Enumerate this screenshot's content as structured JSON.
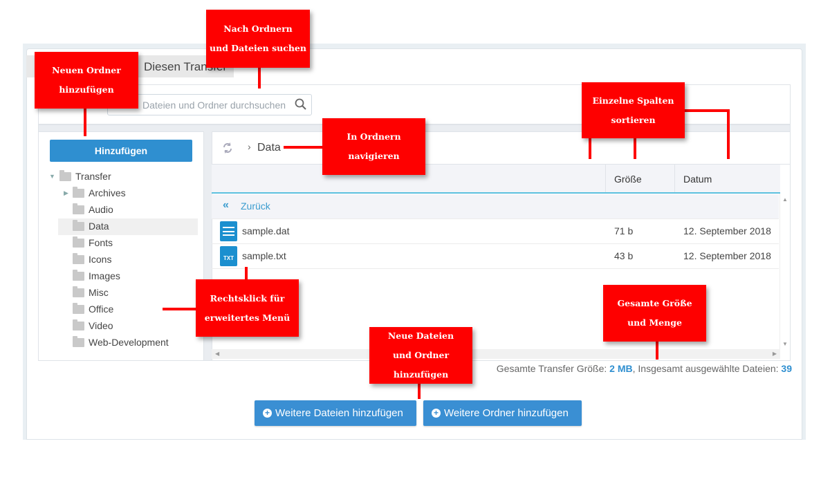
{
  "tab": {
    "label": "Diesen Transfer"
  },
  "search": {
    "placeholder": "Dateien und Ordner durchsuchen"
  },
  "sidebar": {
    "add_label": "Hinzufügen",
    "tree": [
      {
        "label": "Transfer",
        "level": 0,
        "expanded": true
      },
      {
        "label": "Archives",
        "level": 1,
        "collapsed": true
      },
      {
        "label": "Audio",
        "level": 1
      },
      {
        "label": "Data",
        "level": 1,
        "selected": true
      },
      {
        "label": "Fonts",
        "level": 1
      },
      {
        "label": "Icons",
        "level": 1
      },
      {
        "label": "Images",
        "level": 1
      },
      {
        "label": "Misc",
        "level": 1
      },
      {
        "label": "Office",
        "level": 1
      },
      {
        "label": "Video",
        "level": 1
      },
      {
        "label": "Web-Development",
        "level": 1
      }
    ]
  },
  "breadcrumb": {
    "current": "Data"
  },
  "table": {
    "columns": [
      "Größe",
      "Datum"
    ],
    "back_label": "Zurück",
    "rows": [
      {
        "name": "sample.dat",
        "size": "71 b",
        "date": "12. September 2018",
        "icon": "file-lines-icon"
      },
      {
        "name": "sample.txt",
        "size": "43 b",
        "date": "12. September 2018",
        "icon": "txt-file-icon",
        "icon_text": "TXT"
      }
    ]
  },
  "footer": {
    "size_label": "Gesamte Transfer Größe: ",
    "size_value": "2 MB",
    "count_label": ", Insgesamt ausgewählte Dateien: ",
    "count_value": "39"
  },
  "buttons": {
    "add_files": "Weitere Dateien hinzufügen",
    "add_folders": "Weitere Ordner hinzufügen"
  },
  "callouts": {
    "search": [
      "Nach Ordnern",
      "und Dateien suchen"
    ],
    "new_folder": [
      "Neuen Ordner",
      "hinzufügen"
    ],
    "sort": [
      "Einzelne Spalten",
      "sortieren"
    ],
    "navigate": [
      "In Ordnern",
      "navigieren"
    ],
    "rightclick": [
      "Rechtsklick für",
      "erweitertes Menü"
    ],
    "total": [
      "Gesamte Größe",
      "und Menge"
    ],
    "new_files": [
      "Neue Dateien",
      "und Ordner",
      "hinzufügen"
    ]
  },
  "colors": {
    "accent": "#2f8fd0",
    "callout": "#fe0000",
    "header_border": "#5bc0de"
  }
}
